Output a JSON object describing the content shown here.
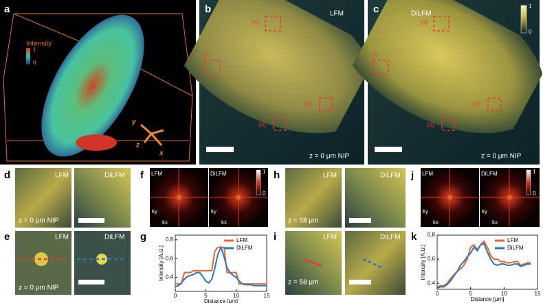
{
  "panels": {
    "a": {
      "label": "a",
      "legend_title": "Intensity",
      "legend_max": "1",
      "legend_min": "0",
      "axes": [
        "y",
        "z",
        "x"
      ]
    },
    "b": {
      "label": "b",
      "title": "LFM",
      "rois": [
        "(h)",
        "(i)",
        "(e)",
        "(d)"
      ],
      "depth": "z = 0 μm NIP"
    },
    "c": {
      "label": "c",
      "title": "DiLFM",
      "colorbar_max": "1",
      "colorbar_min": "0",
      "rois": [
        "(h)",
        "(i)",
        "(e)",
        "(d)"
      ],
      "depth": "z = 0 μm NIP"
    },
    "d": {
      "label": "d",
      "left": "LFM",
      "right": "DiLFM",
      "depth": "z = 0 μm NIP"
    },
    "e": {
      "label": "e",
      "left": "LFM",
      "right": "DiLFM",
      "depth": "z = 0 μm NIP"
    },
    "f": {
      "label": "f",
      "left": "LFM",
      "right": "DiLFM",
      "colorbar_max": "1",
      "colorbar_min": "0",
      "left_axes": [
        "ky",
        "kx"
      ],
      "right_axes": [
        "ky",
        "kx"
      ]
    },
    "g": {
      "label": "g"
    },
    "h": {
      "label": "h",
      "left": "LFM",
      "right": "DiLFM",
      "depth": "z = 58 μm"
    },
    "i": {
      "label": "i",
      "left": "LFM",
      "right": "DiLFM",
      "depth": "z = 58 μm"
    },
    "j": {
      "label": "j",
      "left": "LFM",
      "right": "DiLFM",
      "colorbar_max": "1",
      "colorbar_min": "0",
      "left_axes": [
        "ky",
        "kx"
      ],
      "right_axes": [
        "ky",
        "kx"
      ]
    },
    "k": {
      "label": "k"
    }
  },
  "chart_data": [
    {
      "type": "line",
      "x_label": "Distance [μm]",
      "y_label": "Intensity [A.U.]",
      "x": [
        0,
        0.5,
        1,
        1.5,
        2,
        2.5,
        3,
        3.5,
        4,
        4.5,
        5,
        5.5,
        6,
        6.5,
        7,
        7.5,
        8,
        8.5,
        9,
        9.5,
        10,
        10.5,
        11,
        11.5,
        12,
        12.5,
        13,
        13.5,
        14,
        14.5,
        15
      ],
      "series": [
        {
          "name": "LFM",
          "color": "#e8642c",
          "values": [
            0.33,
            0.33,
            0.33,
            0.45,
            0.45,
            0.45,
            0.47,
            0.47,
            0.47,
            0.47,
            0.47,
            0.47,
            0.47,
            0.68,
            0.72,
            0.72,
            0.72,
            0.45,
            0.45,
            0.45,
            0.45,
            0.33,
            0.33,
            0.33,
            0.33,
            0.33,
            0.33,
            0.33,
            0.33,
            0.33,
            0.33
          ]
        },
        {
          "name": "DiLFM",
          "color": "#2e75b6",
          "values": [
            0.3,
            0.31,
            0.34,
            0.38,
            0.41,
            0.42,
            0.43,
            0.45,
            0.45,
            0.41,
            0.36,
            0.34,
            0.38,
            0.5,
            0.65,
            0.72,
            0.62,
            0.5,
            0.45,
            0.42,
            0.4,
            0.36,
            0.33,
            0.32,
            0.32,
            0.32,
            0.31,
            0.31,
            0.31,
            0.31,
            0.31
          ]
        }
      ],
      "xlim": [
        0,
        15
      ],
      "xticks": [
        0,
        5,
        10,
        15
      ],
      "ylim": [
        0.25,
        0.85
      ],
      "yticks": [
        0.4,
        0.6,
        0.8
      ],
      "legend": "upper right"
    },
    {
      "type": "line",
      "x_label": "Distance [μm]",
      "y_label": "Intensity [A.U.]",
      "x": [
        0,
        0.5,
        1,
        1.5,
        2,
        2.5,
        3,
        3.5,
        4,
        4.5,
        5,
        5.5,
        6,
        6.5,
        7,
        7.5,
        8,
        8.5,
        9,
        9.5,
        10,
        10.5,
        11,
        11.5,
        12,
        12.5,
        13,
        13.5,
        14
      ],
      "series": [
        {
          "name": "LFM",
          "color": "#e8642c",
          "values": [
            0.37,
            0.38,
            0.38,
            0.4,
            0.44,
            0.47,
            0.5,
            0.52,
            0.55,
            0.6,
            0.7,
            0.72,
            0.68,
            0.72,
            0.75,
            0.7,
            0.63,
            0.6,
            0.6,
            0.58,
            0.58,
            0.57,
            0.57,
            0.58,
            0.58,
            0.55,
            0.56,
            0.57,
            0.57
          ]
        },
        {
          "name": "DiLFM",
          "color": "#2e75b6",
          "values": [
            0.36,
            0.37,
            0.37,
            0.39,
            0.42,
            0.46,
            0.5,
            0.55,
            0.58,
            0.62,
            0.65,
            0.7,
            0.67,
            0.72,
            0.73,
            0.66,
            0.6,
            0.56,
            0.55,
            0.56,
            0.56,
            0.55,
            0.55,
            0.56,
            0.56,
            0.54,
            0.55,
            0.56,
            0.56
          ]
        }
      ],
      "xlim": [
        0,
        15
      ],
      "xticks": [
        0,
        5,
        10,
        15
      ],
      "ylim": [
        0.35,
        0.8
      ],
      "yticks": [
        0.4,
        0.6,
        0.8
      ],
      "legend": "upper right"
    }
  ]
}
